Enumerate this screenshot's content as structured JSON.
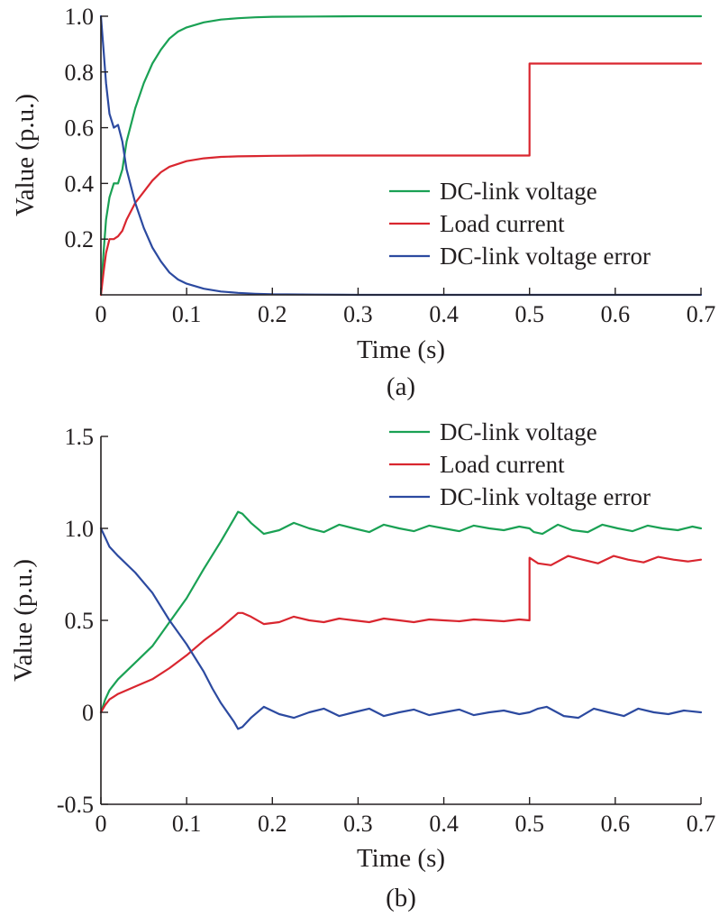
{
  "chart_data": [
    {
      "panel": "(a)",
      "type": "line",
      "xlabel": "Time (s)",
      "ylabel": "Value (p.u.)",
      "xlim": [
        0,
        0.7
      ],
      "ylim": [
        0,
        1.0
      ],
      "xticks": [
        0,
        0.1,
        0.2,
        0.3,
        0.4,
        0.5,
        0.6,
        0.7
      ],
      "xtick_labels": [
        "0",
        "0.1",
        "0.2",
        "0.3",
        "0.4",
        "0.5",
        "0.6",
        "0.7"
      ],
      "yticks": [
        0.2,
        0.4,
        0.6,
        0.8,
        1.0
      ],
      "ytick_labels": [
        "0.2",
        "0.4",
        "0.6",
        "0.8",
        "1.0"
      ],
      "grid": false,
      "legend_position": "lower-right",
      "series": [
        {
          "name": "DC-link voltage",
          "color": "#1aa154",
          "x": [
            0,
            0.003,
            0.006,
            0.01,
            0.015,
            0.02,
            0.025,
            0.03,
            0.04,
            0.05,
            0.06,
            0.07,
            0.08,
            0.09,
            0.1,
            0.12,
            0.14,
            0.16,
            0.18,
            0.2,
            0.25,
            0.3,
            0.35,
            0.4,
            0.5,
            0.6,
            0.7
          ],
          "y": [
            0,
            0.15,
            0.27,
            0.35,
            0.4,
            0.4,
            0.45,
            0.55,
            0.67,
            0.76,
            0.83,
            0.88,
            0.92,
            0.945,
            0.96,
            0.978,
            0.988,
            0.993,
            0.996,
            0.998,
            0.999,
            1.0,
            1.0,
            1.0,
            1.0,
            1.0,
            1.0
          ]
        },
        {
          "name": "Load current",
          "color": "#d9262f",
          "x": [
            0,
            0.003,
            0.006,
            0.01,
            0.015,
            0.02,
            0.025,
            0.03,
            0.04,
            0.05,
            0.06,
            0.07,
            0.08,
            0.09,
            0.1,
            0.12,
            0.14,
            0.16,
            0.18,
            0.2,
            0.25,
            0.3,
            0.4,
            0.5,
            0.5,
            0.55,
            0.6,
            0.7
          ],
          "y": [
            0,
            0.08,
            0.15,
            0.2,
            0.2,
            0.21,
            0.23,
            0.27,
            0.33,
            0.37,
            0.41,
            0.44,
            0.46,
            0.47,
            0.48,
            0.49,
            0.495,
            0.497,
            0.498,
            0.499,
            0.5,
            0.5,
            0.5,
            0.5,
            0.83,
            0.83,
            0.83,
            0.83
          ]
        },
        {
          "name": "DC-link voltage error",
          "color": "#2c4aa0",
          "x": [
            0,
            0.003,
            0.006,
            0.01,
            0.015,
            0.02,
            0.025,
            0.03,
            0.04,
            0.05,
            0.06,
            0.07,
            0.08,
            0.09,
            0.1,
            0.12,
            0.14,
            0.16,
            0.18,
            0.2,
            0.25,
            0.3,
            0.4,
            0.5,
            0.6,
            0.7
          ],
          "y": [
            1.0,
            0.88,
            0.76,
            0.65,
            0.6,
            0.61,
            0.55,
            0.45,
            0.33,
            0.24,
            0.17,
            0.12,
            0.08,
            0.055,
            0.04,
            0.022,
            0.012,
            0.007,
            0.004,
            0.002,
            0.001,
            0.0,
            0.0,
            0.0,
            0.0,
            0.0
          ]
        }
      ]
    },
    {
      "panel": "(b)",
      "type": "line",
      "xlabel": "Time (s)",
      "ylabel": "Value (p.u.)",
      "xlim": [
        0,
        0.7
      ],
      "ylim": [
        -0.5,
        1.5
      ],
      "xticks": [
        0,
        0.1,
        0.2,
        0.3,
        0.4,
        0.5,
        0.6,
        0.7
      ],
      "xtick_labels": [
        "0",
        "0.1",
        "0.2",
        "0.3",
        "0.4",
        "0.5",
        "0.6",
        "0.7"
      ],
      "yticks": [
        -0.5,
        0,
        0.5,
        1.0,
        1.5
      ],
      "ytick_labels": [
        "-0.5",
        "0",
        "0.5",
        "1.0",
        "1.5"
      ],
      "grid": false,
      "legend_position": "top-right",
      "series": [
        {
          "name": "DC-link voltage",
          "color": "#1aa154",
          "x": [
            0,
            0.005,
            0.01,
            0.02,
            0.04,
            0.06,
            0.08,
            0.1,
            0.12,
            0.14,
            0.155,
            0.16,
            0.165,
            0.175,
            0.19,
            0.208,
            0.225,
            0.243,
            0.26,
            0.278,
            0.295,
            0.313,
            0.33,
            0.348,
            0.365,
            0.383,
            0.4,
            0.418,
            0.435,
            0.453,
            0.47,
            0.488,
            0.5,
            0.505,
            0.515,
            0.533,
            0.55,
            0.568,
            0.585,
            0.603,
            0.62,
            0.638,
            0.655,
            0.673,
            0.69,
            0.7
          ],
          "y": [
            0,
            0.07,
            0.12,
            0.18,
            0.27,
            0.36,
            0.49,
            0.62,
            0.78,
            0.93,
            1.05,
            1.09,
            1.08,
            1.03,
            0.97,
            0.99,
            1.03,
            1.0,
            0.98,
            1.02,
            1.0,
            0.98,
            1.02,
            1.0,
            0.985,
            1.015,
            1.0,
            0.985,
            1.015,
            1.0,
            0.99,
            1.01,
            1.0,
            0.98,
            0.97,
            1.02,
            0.99,
            0.98,
            1.02,
            1.0,
            0.985,
            1.015,
            1.0,
            0.99,
            1.01,
            1.0
          ]
        },
        {
          "name": "Load current",
          "color": "#d9262f",
          "x": [
            0,
            0.005,
            0.01,
            0.02,
            0.04,
            0.06,
            0.08,
            0.1,
            0.12,
            0.14,
            0.155,
            0.16,
            0.165,
            0.175,
            0.19,
            0.208,
            0.225,
            0.243,
            0.26,
            0.278,
            0.295,
            0.313,
            0.33,
            0.348,
            0.365,
            0.383,
            0.4,
            0.418,
            0.435,
            0.453,
            0.47,
            0.488,
            0.5,
            0.5,
            0.51,
            0.525,
            0.545,
            0.562,
            0.58,
            0.598,
            0.615,
            0.633,
            0.65,
            0.668,
            0.685,
            0.7
          ],
          "y": [
            0,
            0.04,
            0.07,
            0.1,
            0.14,
            0.18,
            0.24,
            0.31,
            0.39,
            0.46,
            0.52,
            0.54,
            0.54,
            0.52,
            0.48,
            0.49,
            0.52,
            0.5,
            0.49,
            0.51,
            0.5,
            0.49,
            0.51,
            0.5,
            0.49,
            0.505,
            0.5,
            0.495,
            0.505,
            0.5,
            0.495,
            0.505,
            0.5,
            0.84,
            0.81,
            0.8,
            0.85,
            0.83,
            0.81,
            0.85,
            0.83,
            0.815,
            0.845,
            0.83,
            0.82,
            0.83
          ]
        },
        {
          "name": "DC-link voltage error",
          "color": "#2c4aa0",
          "x": [
            0,
            0.005,
            0.01,
            0.02,
            0.04,
            0.06,
            0.08,
            0.1,
            0.12,
            0.13,
            0.14,
            0.155,
            0.16,
            0.165,
            0.175,
            0.19,
            0.208,
            0.225,
            0.243,
            0.26,
            0.278,
            0.295,
            0.313,
            0.33,
            0.348,
            0.365,
            0.383,
            0.4,
            0.418,
            0.435,
            0.453,
            0.47,
            0.488,
            0.5,
            0.51,
            0.52,
            0.54,
            0.557,
            0.575,
            0.592,
            0.61,
            0.627,
            0.645,
            0.662,
            0.68,
            0.7
          ],
          "y": [
            1.0,
            0.95,
            0.9,
            0.85,
            0.76,
            0.65,
            0.5,
            0.37,
            0.22,
            0.13,
            0.05,
            -0.05,
            -0.09,
            -0.08,
            -0.03,
            0.03,
            -0.01,
            -0.03,
            0.0,
            0.02,
            -0.02,
            0.0,
            0.02,
            -0.02,
            0.0,
            0.015,
            -0.015,
            0.0,
            0.015,
            -0.015,
            0.0,
            0.01,
            -0.01,
            0.0,
            0.02,
            0.03,
            -0.02,
            -0.03,
            0.02,
            0.0,
            -0.02,
            0.02,
            0.0,
            -0.01,
            0.01,
            0.0
          ]
        }
      ]
    }
  ]
}
